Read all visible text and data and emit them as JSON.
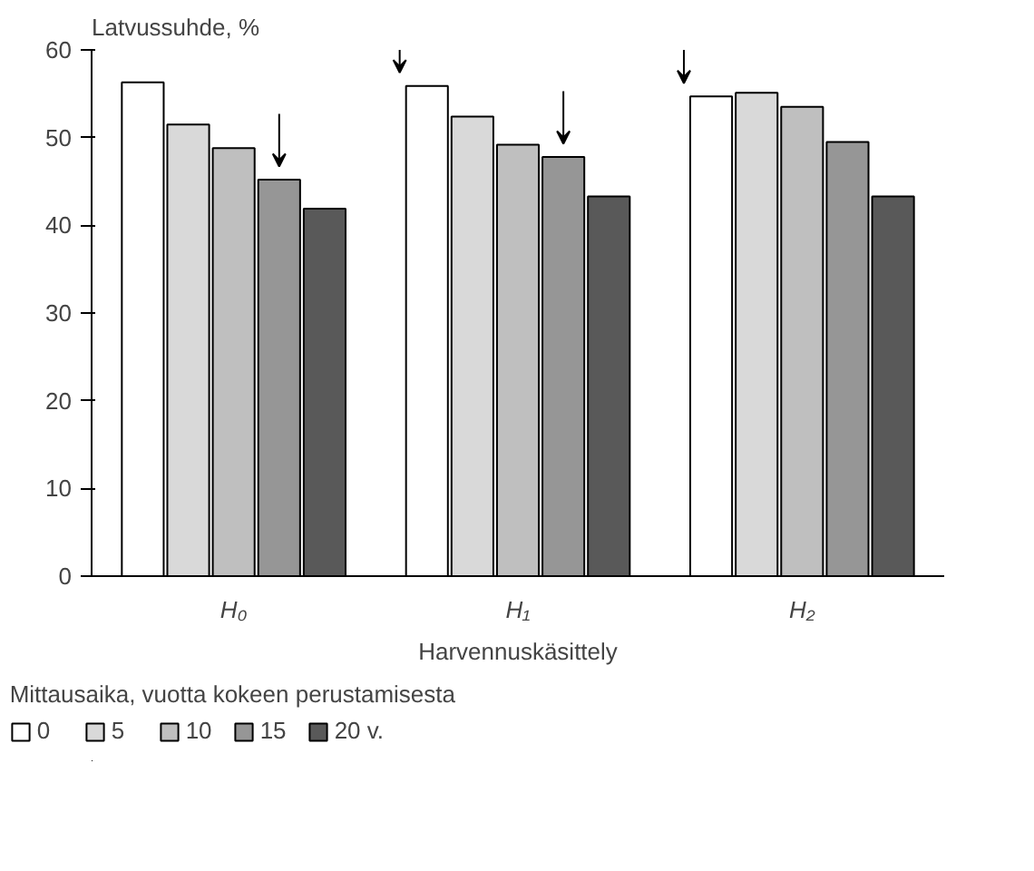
{
  "chart_data": {
    "type": "bar",
    "ylabel": "Latvussuhde, %",
    "xlabel": "Harvennuskäsittely",
    "legend_title": "Mittausaika, vuotta kokeen perustamisesta",
    "categories": [
      "H₀",
      "H₁",
      "H₂"
    ],
    "series": [
      {
        "name": "0",
        "color": "#ffffff",
        "values": [
          56.3,
          55.9,
          54.7
        ]
      },
      {
        "name": "5",
        "color": "#d9d9d9",
        "values": [
          51.5,
          52.4,
          55.1
        ]
      },
      {
        "name": "10",
        "color": "#bfbfbf",
        "values": [
          48.8,
          49.2,
          53.5
        ]
      },
      {
        "name": "15",
        "color": "#969696",
        "values": [
          45.2,
          47.8,
          49.5
        ]
      },
      {
        "name": "20 v.",
        "color": "#595959",
        "values": [
          41.9,
          43.3,
          43.3
        ]
      }
    ],
    "ylim": [
      0,
      60
    ],
    "yticks": [
      0,
      10,
      20,
      30,
      40,
      50,
      60
    ],
    "grid": false,
    "legend": "bottom"
  }
}
